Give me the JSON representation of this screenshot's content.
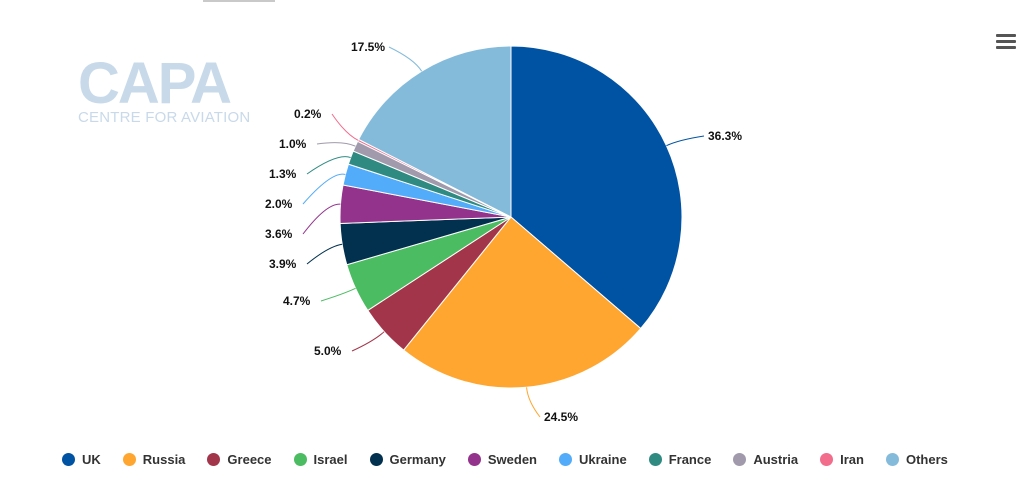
{
  "watermark": {
    "main": "CAPA",
    "sub": "CENTRE FOR AVIATION"
  },
  "menu": {
    "icon": "hamburger-menu-icon"
  },
  "chart_data": {
    "type": "pie",
    "title": "",
    "unit": "%",
    "legend_position": "bottom",
    "slices": [
      {
        "name": "UK",
        "value": 36.3,
        "label": "36.3%",
        "color": "#0052a3"
      },
      {
        "name": "Russia",
        "value": 24.5,
        "label": "24.5%",
        "color": "#ffa630"
      },
      {
        "name": "Greece",
        "value": 5.0,
        "label": "5.0%",
        "color": "#a3354a"
      },
      {
        "name": "Israel",
        "value": 4.7,
        "label": "4.7%",
        "color": "#4cbc62"
      },
      {
        "name": "Germany",
        "value": 3.9,
        "label": "3.9%",
        "color": "#02304f"
      },
      {
        "name": "Sweden",
        "value": 3.6,
        "label": "3.6%",
        "color": "#93338c"
      },
      {
        "name": "Ukraine",
        "value": 2.0,
        "label": "2.0%",
        "color": "#53acf9"
      },
      {
        "name": "France",
        "value": 1.3,
        "label": "1.3%",
        "color": "#2f8b82"
      },
      {
        "name": "Austria",
        "value": 1.0,
        "label": "1.0%",
        "color": "#a09aac"
      },
      {
        "name": "Iran",
        "value": 0.2,
        "label": "0.2%",
        "color": "#f26c8c"
      },
      {
        "name": "Others",
        "value": 17.5,
        "label": "17.5%",
        "color": "#84bbdb"
      }
    ]
  }
}
